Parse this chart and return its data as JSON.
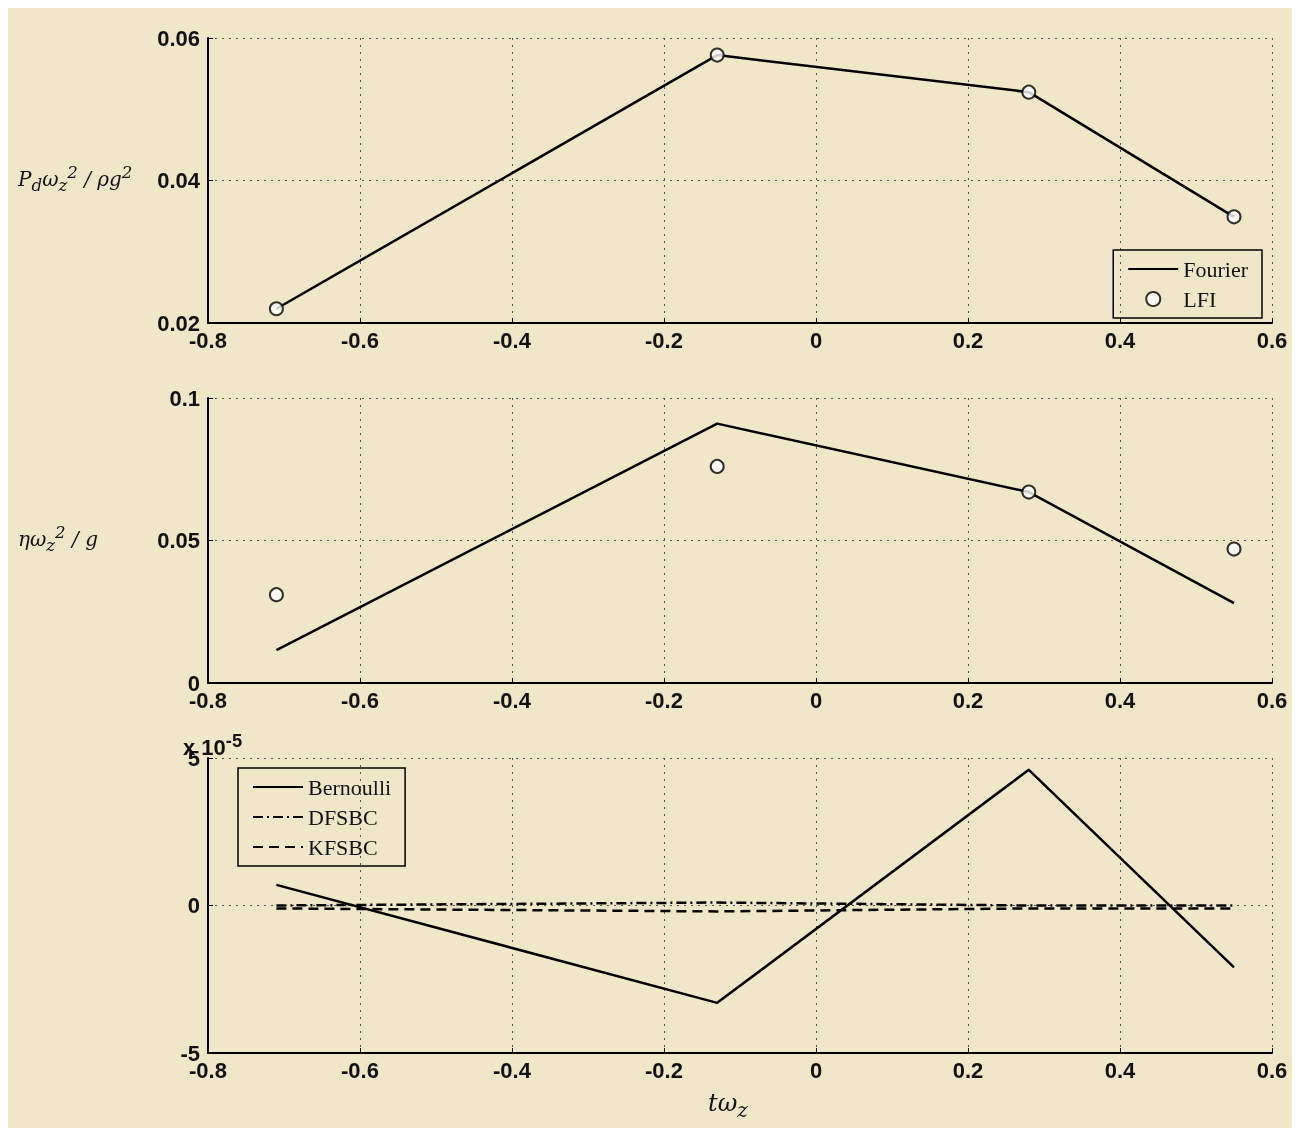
{
  "chart_data": [
    {
      "type": "line",
      "ylabel": "P$_{d}$ω$_{z}$$^{2}$ / ρg$^{2}$",
      "x": [
        -0.71,
        -0.13,
        0.28,
        0.55
      ],
      "xlim": [
        -0.8,
        0.6
      ],
      "xticks": [
        -0.8,
        -0.6,
        -0.4,
        -0.2,
        0,
        0.2,
        0.4,
        0.6
      ],
      "ylim": [
        0.02,
        0.06
      ],
      "yticks": [
        0.02,
        0.04,
        0.06
      ],
      "grid": true,
      "legend": "bottom right",
      "series": [
        {
          "name": "Fourier",
          "color": "#000000",
          "marker": "none",
          "line_style": "solid",
          "values": [
            0.022,
            0.0576,
            0.0524,
            0.0349
          ]
        },
        {
          "name": "LFI",
          "type": "scatter",
          "color": "#000000",
          "marker": "circle",
          "values": [
            0.022,
            0.0576,
            0.0524,
            0.0349
          ]
        }
      ]
    },
    {
      "type": "line",
      "ylabel": "ηω$_{z}$$^{2}$ / g",
      "x": [
        -0.71,
        -0.13,
        0.28,
        0.55
      ],
      "xlim": [
        -0.8,
        0.6
      ],
      "xticks": [
        -0.8,
        -0.6,
        -0.4,
        -0.2,
        0,
        0.2,
        0.4,
        0.6
      ],
      "ylim": [
        0,
        0.1
      ],
      "yticks": [
        0,
        0.05,
        0.1
      ],
      "grid": true,
      "series": [
        {
          "color": "#000000",
          "marker": "none",
          "line_style": "solid",
          "values": [
            0.0115,
            0.091,
            0.067,
            0.028
          ]
        },
        {
          "type": "scatter",
          "color": "#000000",
          "marker": "circle",
          "values": [
            0.031,
            0.076,
            0.067,
            0.047
          ]
        }
      ]
    },
    {
      "type": "line",
      "xlabel": "tω$_{z}$",
      "annotations": [
        "x 10$^{-5}$"
      ],
      "x": [
        -0.71,
        -0.13,
        0.28,
        0.55
      ],
      "xlim": [
        -0.8,
        0.6
      ],
      "xticks": [
        -0.8,
        -0.6,
        -0.4,
        -0.2,
        0,
        0.2,
        0.4,
        0.6
      ],
      "ylim": [
        -5,
        5
      ],
      "yticks": [
        -5,
        0,
        5
      ],
      "grid": true,
      "legend": "top left",
      "series": [
        {
          "name": "Bernoulli",
          "color": "#000000",
          "marker": "none",
          "line_style": "solid",
          "values": [
            0.7,
            -3.3,
            4.6,
            -2.1
          ]
        },
        {
          "name": "DFSBC",
          "color": "#000000",
          "marker": "none",
          "line_style": "dashdot",
          "values": [
            0,
            0.1,
            0,
            0
          ]
        },
        {
          "name": "KFSBC",
          "color": "#000000",
          "marker": "none",
          "line_style": "dashed",
          "values": [
            -0.1,
            -0.2,
            -0.1,
            -0.1
          ]
        }
      ]
    }
  ]
}
